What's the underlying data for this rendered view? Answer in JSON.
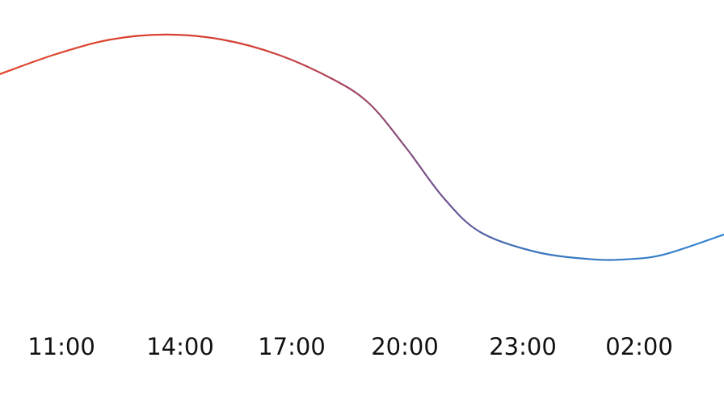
{
  "chart_data": {
    "type": "line",
    "title": "",
    "xlabel": "",
    "ylabel": "",
    "x_ticks": [
      "11:00",
      "14:00",
      "17:00",
      "20:00",
      "23:00",
      "02:00"
    ],
    "series": [
      {
        "points": [
          {
            "x": 9.0,
            "y": 27.0
          },
          {
            "x": 10.5,
            "y": 27.8
          },
          {
            "x": 12.0,
            "y": 28.4
          },
          {
            "x": 13.5,
            "y": 28.6
          },
          {
            "x": 15.0,
            "y": 28.4
          },
          {
            "x": 16.5,
            "y": 27.8
          },
          {
            "x": 18.0,
            "y": 26.8
          },
          {
            "x": 19.0,
            "y": 25.8
          },
          {
            "x": 20.0,
            "y": 24.0
          },
          {
            "x": 21.0,
            "y": 22.0
          },
          {
            "x": 22.0,
            "y": 20.6
          },
          {
            "x": 23.5,
            "y": 19.8
          },
          {
            "x": 25.0,
            "y": 19.5
          },
          {
            "x": 26.0,
            "y": 19.5
          },
          {
            "x": 27.0,
            "y": 19.7
          },
          {
            "x": 28.6,
            "y": 20.5
          }
        ]
      }
    ],
    "xlim": [
      9.0,
      28.6
    ],
    "ylim": [
      14.0,
      30.0
    ],
    "line_colors": {
      "warm": "#e0452b",
      "mid": "#8a4f86",
      "cool": "#2f82d0"
    },
    "grid": false,
    "legend": "none"
  }
}
